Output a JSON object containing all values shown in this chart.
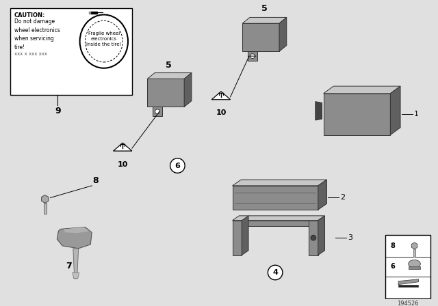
{
  "background_color": "#e0e0e0",
  "diagram_bg": "#f0f0f0",
  "part_color": "#8c8c8c",
  "part_color_light": "#b0b0b0",
  "part_color_dark": "#606060",
  "part_color_very_light": "#c8c8c8",
  "caution_text_left": [
    "CAUTION:",
    "Do not damage",
    "wheel electronics",
    "when servicing",
    "tire!",
    "xxx x xxx xxx"
  ],
  "caution_text_right": [
    "Fragile wheel",
    "electronics",
    "inside the tire!"
  ],
  "diagram_id": "194526",
  "label_fontsize": 8,
  "bold_fontsize": 9
}
